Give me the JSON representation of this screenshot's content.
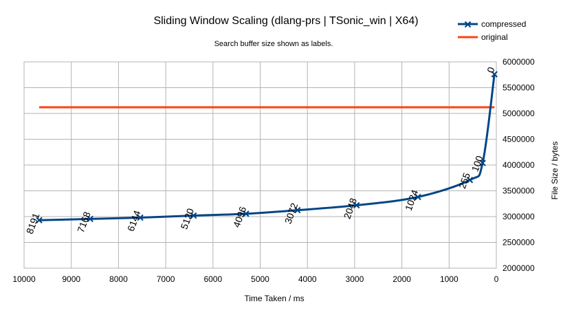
{
  "chart_data": {
    "type": "line",
    "title": "Sliding Window Scaling (dlang-prs | TSonic_win | X64)",
    "subtitle": "Search buffer size shown as labels.",
    "xlabel": "Time Taken / ms",
    "ylabel": "File Size / bytes",
    "x_reversed": true,
    "xlim": [
      0,
      10000
    ],
    "ylim": [
      2000000,
      6000000
    ],
    "x_ticks": [
      "10000",
      "9000",
      "8000",
      "7000",
      "6000",
      "5000",
      "4000",
      "3000",
      "2000",
      "1000",
      "0"
    ],
    "y_ticks": [
      "2000000",
      "2500000",
      "3000000",
      "3500000",
      "4000000",
      "4500000",
      "5000000",
      "5500000",
      "6000000"
    ],
    "grid": true,
    "legend_position": "top-right",
    "series": [
      {
        "name": "compressed",
        "color": "#004586",
        "marker": "x",
        "points": [
          {
            "x": 9680,
            "y": 2930000,
            "label": "8191"
          },
          {
            "x": 8600,
            "y": 2955000,
            "label": "7168"
          },
          {
            "x": 7540,
            "y": 2980000,
            "label": "6144"
          },
          {
            "x": 6410,
            "y": 3020000,
            "label": "5120"
          },
          {
            "x": 5300,
            "y": 3055000,
            "label": "4096"
          },
          {
            "x": 4210,
            "y": 3125000,
            "label": "3072"
          },
          {
            "x": 2960,
            "y": 3220000,
            "label": "2048"
          },
          {
            "x": 1660,
            "y": 3380000,
            "label": "1024"
          },
          {
            "x": 560,
            "y": 3710000,
            "label": "255"
          },
          {
            "x": 290,
            "y": 4040000,
            "label": "100"
          },
          {
            "x": 40,
            "y": 5760000,
            "label": "0"
          }
        ]
      },
      {
        "name": "original",
        "color": "#ff420e",
        "points": [
          {
            "x": 9680,
            "y": 5120000
          },
          {
            "x": 40,
            "y": 5120000
          }
        ]
      }
    ]
  }
}
